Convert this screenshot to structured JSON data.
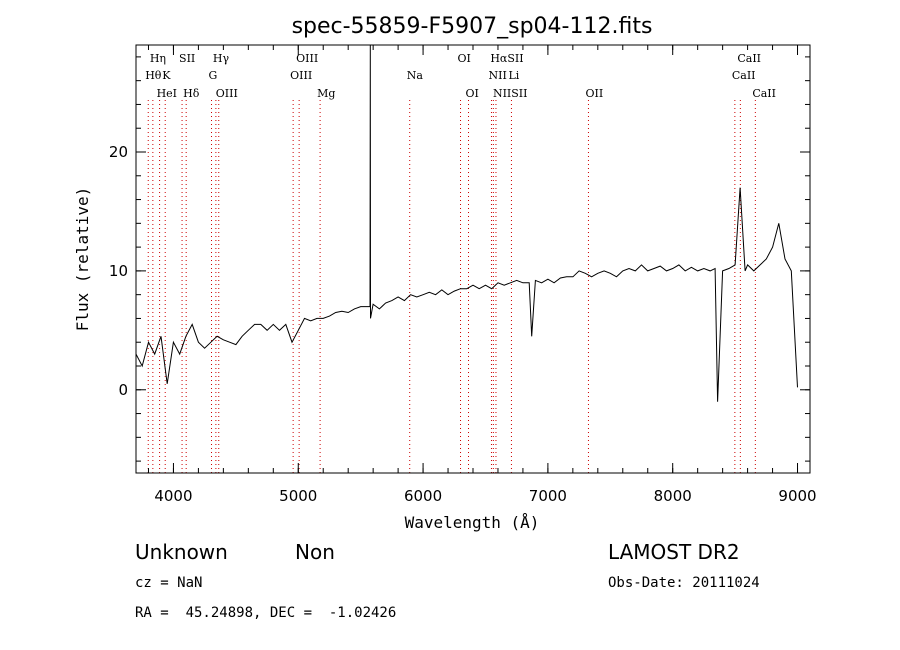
{
  "chart_data": {
    "type": "line",
    "title": "spec-55859-F5907_sp04-112.fits",
    "xlabel": "Wavelength (Å)",
    "ylabel": "Flux (relative)",
    "xlim": [
      3700,
      9100
    ],
    "ylim": [
      -7,
      29
    ],
    "x_ticks": [
      4000,
      5000,
      6000,
      7000,
      8000,
      9000
    ],
    "y_ticks": [
      0,
      10,
      20
    ],
    "grid": false,
    "series": [
      {
        "x": [
          3700,
          3750,
          3800,
          3850,
          3900,
          3950,
          4000,
          4050,
          4100,
          4150,
          4200,
          4250,
          4300,
          4350,
          4400,
          4450,
          4500,
          4550,
          4600,
          4650,
          4700,
          4750,
          4800,
          4850,
          4900,
          4950,
          5000,
          5050,
          5100,
          5150,
          5200,
          5250,
          5300,
          5350,
          5400,
          5450,
          5500,
          5550,
          5575,
          5577,
          5579,
          5600,
          5650,
          5700,
          5750,
          5800,
          5850,
          5900,
          5950,
          6000,
          6050,
          6100,
          6150,
          6200,
          6250,
          6300,
          6350,
          6400,
          6450,
          6500,
          6550,
          6600,
          6650,
          6700,
          6750,
          6800,
          6850,
          6870,
          6900,
          6950,
          7000,
          7050,
          7100,
          7150,
          7200,
          7250,
          7300,
          7350,
          7400,
          7450,
          7500,
          7550,
          7600,
          7650,
          7700,
          7750,
          7800,
          7850,
          7900,
          7950,
          8000,
          8050,
          8100,
          8150,
          8200,
          8250,
          8300,
          8340,
          8360,
          8400,
          8450,
          8500,
          8540,
          8580,
          8600,
          8650,
          8700,
          8750,
          8800,
          8850,
          8900,
          8950,
          9000
        ],
        "y": [
          3.0,
          2.0,
          4.0,
          3.0,
          4.5,
          0.5,
          4.0,
          3.0,
          4.5,
          5.5,
          4.0,
          3.5,
          4.0,
          4.5,
          4.2,
          4.0,
          3.8,
          4.5,
          5.0,
          5.5,
          5.5,
          5.0,
          5.5,
          5.0,
          5.5,
          4.0,
          5.0,
          6.0,
          5.8,
          6.0,
          6.0,
          6.2,
          6.5,
          6.6,
          6.5,
          6.8,
          7.0,
          7.0,
          7.0,
          29.0,
          6.0,
          7.2,
          6.8,
          7.3,
          7.5,
          7.8,
          7.5,
          8.0,
          7.8,
          8.0,
          8.2,
          8.0,
          8.4,
          8.0,
          8.3,
          8.5,
          8.5,
          8.8,
          8.5,
          8.8,
          8.5,
          9.0,
          8.8,
          9.0,
          9.2,
          9.0,
          9.0,
          4.5,
          9.2,
          9.0,
          9.3,
          9.0,
          9.4,
          9.5,
          9.5,
          10.0,
          9.8,
          9.5,
          9.8,
          10.0,
          9.8,
          9.5,
          10.0,
          10.2,
          10.0,
          10.5,
          10.0,
          10.2,
          10.4,
          10.0,
          10.2,
          10.5,
          10.0,
          10.3,
          10.0,
          10.2,
          10.0,
          10.2,
          -1.0,
          10.0,
          10.2,
          10.5,
          17.0,
          10.0,
          10.5,
          10.0,
          10.5,
          11.0,
          12.0,
          14.0,
          11.0,
          10.0,
          0.2
        ]
      }
    ],
    "emission_lines": [
      {
        "label": "Hη",
        "x": 3835,
        "row": 0
      },
      {
        "label": "SII",
        "x": 4069,
        "row": 0
      },
      {
        "label": "Hγ",
        "x": 4340,
        "row": 0
      },
      {
        "label": "OIII",
        "x": 5007,
        "row": 0
      },
      {
        "label": "OI",
        "x": 6300,
        "row": 0
      },
      {
        "label": "HαSII",
        "x": 6563,
        "row": 0
      },
      {
        "label": "CaII",
        "x": 8542,
        "row": 0
      },
      {
        "label": "Hθ",
        "x": 3798,
        "row": 1
      },
      {
        "label": "K",
        "x": 3934,
        "row": 1
      },
      {
        "label": "G",
        "x": 4305,
        "row": 1
      },
      {
        "label": "OIII",
        "x": 4959,
        "row": 1
      },
      {
        "label": "Na",
        "x": 5893,
        "row": 1
      },
      {
        "label": "NII",
        "x": 6548,
        "row": 1
      },
      {
        "label": "Li",
        "x": 6708,
        "row": 1
      },
      {
        "label": "CaII",
        "x": 8498,
        "row": 1
      },
      {
        "label": "HeI",
        "x": 3889,
        "row": 2
      },
      {
        "label": "Hδ",
        "x": 4102,
        "row": 2
      },
      {
        "label": "OIII",
        "x": 4363,
        "row": 2
      },
      {
        "label": "Mg",
        "x": 5175,
        "row": 2
      },
      {
        "label": "OI",
        "x": 6364,
        "row": 2
      },
      {
        "label": "NIISII",
        "x": 6584,
        "row": 2
      },
      {
        "label": "OII",
        "x": 7325,
        "row": 2
      },
      {
        "label": "CaII",
        "x": 8662,
        "row": 2
      }
    ]
  },
  "info": {
    "class_label": "Unknown",
    "subclass_label": "Non",
    "survey": "LAMOST DR2",
    "cz": "cz = NaN",
    "obs_date": "Obs-Date: 20111024",
    "coords": "RA =  45.24898, DEC =  -1.02426"
  },
  "colors": {
    "line_marker": "#cc0000",
    "spectrum": "#000000"
  }
}
